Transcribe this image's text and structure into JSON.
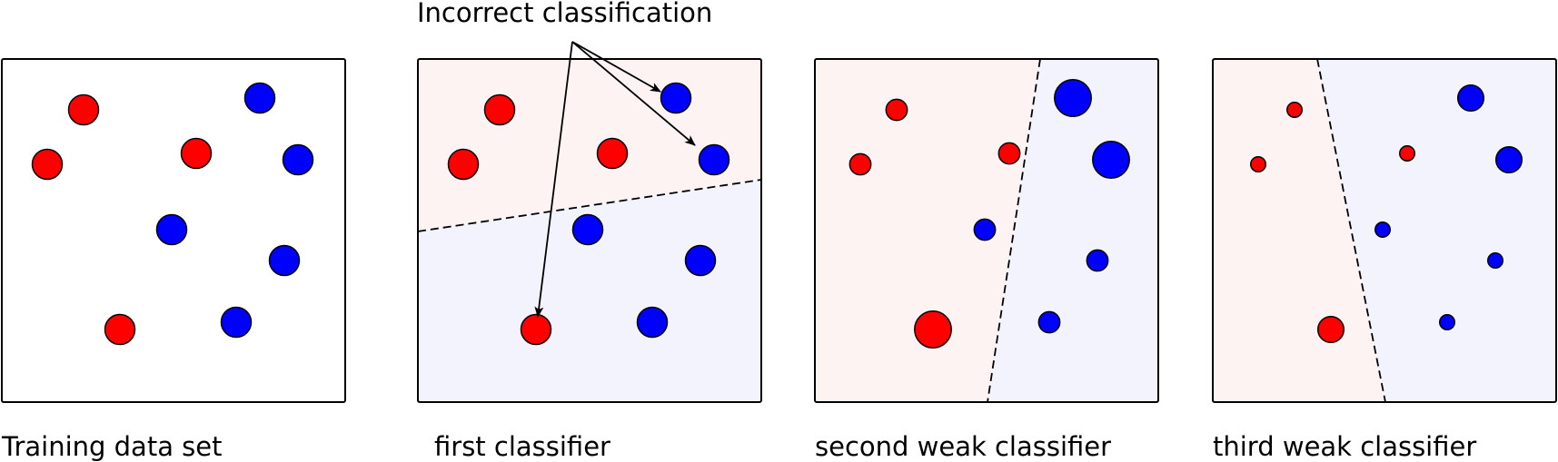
{
  "annotation": "Incorrect classification",
  "colors": {
    "red": "#ff0000",
    "blue": "#0000ff",
    "red_region": "#fdf3f3",
    "blue_region": "#f3f3fd"
  },
  "panels": [
    {
      "caption": "Training data set",
      "points": [
        {
          "cls": "red",
          "w": 1
        },
        {
          "cls": "red",
          "w": 1
        },
        {
          "cls": "red",
          "w": 1
        },
        {
          "cls": "red",
          "w": 1
        },
        {
          "cls": "blue",
          "w": 1
        },
        {
          "cls": "blue",
          "w": 1
        },
        {
          "cls": "blue",
          "w": 1
        },
        {
          "cls": "blue",
          "w": 1
        },
        {
          "cls": "blue",
          "w": 1
        }
      ]
    },
    {
      "caption": "first classifier",
      "points": [
        {
          "cls": "red",
          "w": 1
        },
        {
          "cls": "red",
          "w": 1
        },
        {
          "cls": "red",
          "w": 1
        },
        {
          "cls": "red",
          "w": 1,
          "misclassified": true
        },
        {
          "cls": "blue",
          "w": 1,
          "misclassified": true
        },
        {
          "cls": "blue",
          "w": 1,
          "misclassified": true
        },
        {
          "cls": "blue",
          "w": 1
        },
        {
          "cls": "blue",
          "w": 1
        },
        {
          "cls": "blue",
          "w": 1
        }
      ]
    },
    {
      "caption": "second weak classifier",
      "points": [
        {
          "cls": "red",
          "w": 0.5
        },
        {
          "cls": "red",
          "w": 0.5
        },
        {
          "cls": "red",
          "w": 0.5
        },
        {
          "cls": "red",
          "w": 1.5
        },
        {
          "cls": "blue",
          "w": 1.5
        },
        {
          "cls": "blue",
          "w": 1.5
        },
        {
          "cls": "blue",
          "w": 0.5
        },
        {
          "cls": "blue",
          "w": 0.5
        },
        {
          "cls": "blue",
          "w": 0.5
        }
      ]
    },
    {
      "caption": "third weak classifier",
      "points": [
        {
          "cls": "red",
          "w": 0.25
        },
        {
          "cls": "red",
          "w": 0.25
        },
        {
          "cls": "red",
          "w": 0.25
        },
        {
          "cls": "red",
          "w": 0.75
        },
        {
          "cls": "blue",
          "w": 0.75
        },
        {
          "cls": "blue",
          "w": 0.75
        },
        {
          "cls": "blue",
          "w": 0.25
        },
        {
          "cls": "blue",
          "w": 0.25
        },
        {
          "cls": "blue",
          "w": 0.25
        }
      ]
    }
  ]
}
